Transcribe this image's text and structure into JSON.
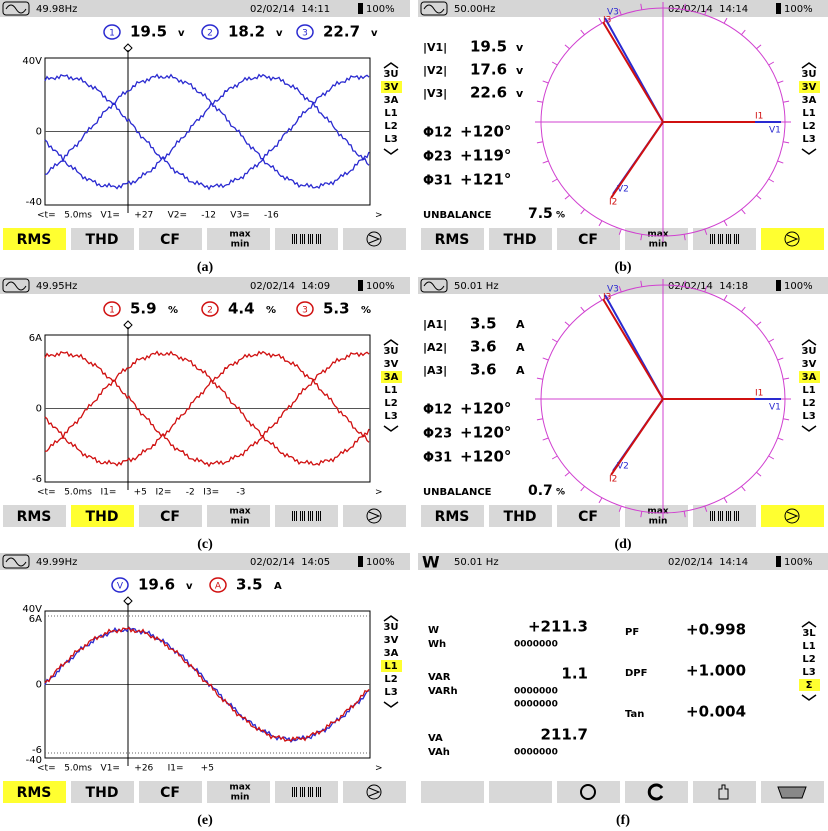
{
  "buttons": [
    "RMS",
    "THD",
    "CF",
    "max",
    "min"
  ],
  "panels": [
    {
      "type": "waveform",
      "label": "(a)",
      "status": {
        "freq": "49.98Hz",
        "datetime": "02/02/14  14:11",
        "battery": "100%"
      },
      "readings": [
        {
          "marker": "1",
          "value": "19.5",
          "unit": "v",
          "color": "#2a2ad0"
        },
        {
          "marker": "2",
          "value": "18.2",
          "unit": "v",
          "color": "#2a2ad0"
        },
        {
          "marker": "3",
          "value": "22.7",
          "unit": "v",
          "color": "#2a2ad0"
        }
      ],
      "trace_colors": [
        "#2a2ad0"
      ],
      "axis": [
        "40V",
        "0",
        "-40"
      ],
      "cursor": "<t=   5.0ms   V1=     +27     V2=     -12     V3=     -16",
      "cursor_end": ">",
      "menu": [
        "3U",
        "3V",
        "3A",
        "L1",
        "L2",
        "L3"
      ],
      "menu_selected": 1,
      "button_selected": 0
    },
    {
      "type": "phasor",
      "label": "(b)",
      "status": {
        "freq": "50.00Hz",
        "datetime": "02/02/14  14:14",
        "battery": "100%"
      },
      "magnitudes": [
        {
          "label": "|V1|",
          "value": "19.5",
          "unit": "v"
        },
        {
          "label": "|V2|",
          "value": "17.6",
          "unit": "v"
        },
        {
          "label": "|V3|",
          "value": "22.6",
          "unit": "v"
        }
      ],
      "phases": [
        {
          "label": "Φ12",
          "value": "+120°"
        },
        {
          "label": "Φ23",
          "value": "+119°"
        },
        {
          "label": "Φ31",
          "value": "+121°"
        }
      ],
      "unbalance": {
        "label": "UNBALANCE",
        "value": "7.5",
        "unit": "%"
      },
      "vectors": [
        "V1",
        "I1",
        "V2",
        "I2",
        "V3",
        "I3"
      ],
      "menu": [
        "3U",
        "3V",
        "3A",
        "L1",
        "L2",
        "L3"
      ],
      "menu_selected": 1,
      "button_selected": 5
    },
    {
      "type": "waveform",
      "label": "(c)",
      "status": {
        "freq": "49.95Hz",
        "datetime": "02/02/14  14:09",
        "battery": "100%"
      },
      "readings": [
        {
          "marker": "1",
          "value": "5.9",
          "unit": "%",
          "color": "#d01010"
        },
        {
          "marker": "2",
          "value": "4.4",
          "unit": "%",
          "color": "#d01010"
        },
        {
          "marker": "3",
          "value": "5.3",
          "unit": "%",
          "color": "#d01010"
        }
      ],
      "trace_colors": [
        "#d01010"
      ],
      "axis": [
        "6A",
        "0",
        "-6"
      ],
      "cursor": "<t=   5.0ms   I1=      +5   I2=     -2   I3=      -3",
      "cursor_end": ">",
      "menu": [
        "3U",
        "3V",
        "3A",
        "L1",
        "L2",
        "L3"
      ],
      "menu_selected": 2,
      "button_selected": 1
    },
    {
      "type": "phasor",
      "label": "(d)",
      "status": {
        "freq": "50.01 Hz",
        "datetime": "02/02/14  14:18",
        "battery": "100%"
      },
      "magnitudes": [
        {
          "label": "|A1|",
          "value": "3.5",
          "unit": "A"
        },
        {
          "label": "|A2|",
          "value": "3.6",
          "unit": "A"
        },
        {
          "label": "|A3|",
          "value": "3.6",
          "unit": "A"
        }
      ],
      "phases": [
        {
          "label": "Φ12",
          "value": "+120°"
        },
        {
          "label": "Φ23",
          "value": "+120°"
        },
        {
          "label": "Φ31",
          "value": "+120°"
        }
      ],
      "unbalance": {
        "label": "UNBALANCE",
        "value": "0.7",
        "unit": "%"
      },
      "vectors": [
        "V1",
        "I1",
        "V2",
        "I2",
        "V3",
        "I3"
      ],
      "menu": [
        "3U",
        "3V",
        "3A",
        "L1",
        "L2",
        "L3"
      ],
      "menu_selected": 2,
      "button_selected": 5
    },
    {
      "type": "waveform",
      "label": "(e)",
      "status": {
        "freq": "49.99Hz",
        "datetime": "02/02/14  14:05",
        "battery": "100%"
      },
      "readings": [
        {
          "marker": "V",
          "value": "19.6",
          "unit": "v",
          "color": "#2a2ad0"
        },
        {
          "marker": "A",
          "value": "3.5",
          "unit": "A",
          "color": "#d01010"
        }
      ],
      "trace_colors": [
        "#2a2ad0",
        "#d01010"
      ],
      "axis": [
        "40V",
        "6A",
        "0",
        "-6",
        "-40"
      ],
      "cursor": "<t=   5.0ms   V1=     +26     I1=      +5",
      "cursor_end": ">",
      "menu": [
        "3U",
        "3V",
        "3A",
        "L1",
        "L2",
        "L3"
      ],
      "menu_selected": 3,
      "button_selected": 0
    },
    {
      "type": "power",
      "label": "(f)",
      "status": {
        "icon": "W",
        "freq": "50.01 Hz",
        "datetime": "02/02/14  14:14",
        "battery": "100%"
      },
      "power": [
        {
          "label": "W",
          "value": "+211.3",
          "sub_label": "Wh",
          "sub_values": [
            "0000000"
          ]
        },
        {
          "label": "VAR",
          "value": "1.1",
          "sub_label": "VARh",
          "sub_values": [
            "0000000",
            "0000000"
          ]
        },
        {
          "label": "VA",
          "value": "211.7",
          "sub_label": "VAh",
          "sub_values": [
            "0000000"
          ]
        }
      ],
      "factors": [
        {
          "label": "PF",
          "value": "+0.998"
        },
        {
          "label": "DPF",
          "value": "+1.000"
        },
        {
          "label": "Tan",
          "value": "+0.004"
        }
      ],
      "menu": [
        "3L",
        "L1",
        "L2",
        "L3",
        "Σ"
      ],
      "menu_selected": 4
    }
  ]
}
